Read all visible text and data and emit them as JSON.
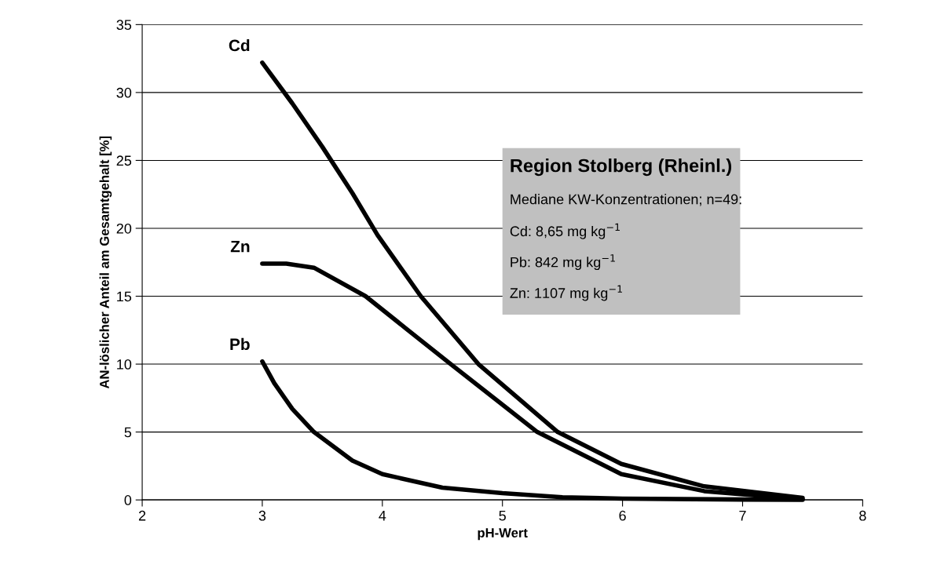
{
  "chart_data": {
    "type": "line",
    "xlabel": "pH-Wert",
    "ylabel": "AN-löslicher Anteil am Gesamtgehalt [%]",
    "xlim": [
      2,
      8
    ],
    "xticks": [
      2,
      3,
      4,
      5,
      6,
      7,
      8
    ],
    "ylim": [
      0,
      35
    ],
    "yticks": [
      0,
      5,
      10,
      15,
      20,
      25,
      30,
      35
    ],
    "grid": "y",
    "legend": false,
    "marker": "none",
    "line_style": "solid",
    "series": [
      {
        "name": "Cd",
        "color": "#000000",
        "x": [
          3,
          3.25,
          3.5,
          3.75,
          3.96,
          4.32,
          4.8,
          5.46,
          5.99,
          6.68,
          7.5
        ],
        "values": [
          32.2,
          29.2,
          26.0,
          22.6,
          19.5,
          15,
          10,
          5,
          2.65,
          1.0,
          0.15
        ]
      },
      {
        "name": "Zn",
        "color": "#000000",
        "x": [
          3,
          3.2,
          3.43,
          3.86,
          4.2,
          4.57,
          5.29,
          5.99,
          6.68,
          7.5
        ],
        "values": [
          17.4,
          17.4,
          17.1,
          15,
          12.6,
          10,
          5,
          1.9,
          0.65,
          0.05
        ]
      },
      {
        "name": "Pb",
        "color": "#000000",
        "x": [
          3,
          3.1,
          3.25,
          3.43,
          3.75,
          4.0,
          4.5,
          5.0,
          5.5,
          6.0,
          7.0,
          7.5
        ],
        "values": [
          10.2,
          8.6,
          6.7,
          5.0,
          2.9,
          1.9,
          0.9,
          0.5,
          0.2,
          0.1,
          0.03,
          0.01
        ]
      }
    ],
    "annotations": [
      "Region Stolberg (Rheinl.)",
      "Mediane KW-Konzentrationen; n=49:",
      "Cd: 8,65 mg kg$^{−1}$",
      "Pb: 842 mg kg$^{−1}$",
      "Zn: 1107 mg kg$^{−1}$"
    ]
  }
}
